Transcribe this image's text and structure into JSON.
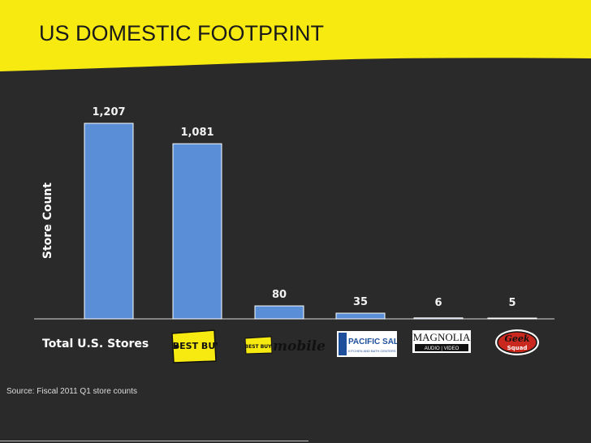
{
  "title": "US DOMESTIC FOOTPRINT",
  "colors": {
    "header": "#f7ea10",
    "background": "#2a2a2a",
    "bar": "#5a8fd8"
  },
  "chart_data": {
    "type": "bar",
    "ylabel": "Store Count",
    "category_axis_label": "Total U.S. Stores",
    "categories": [
      "Best Buy stores",
      "Best Buy Mobile",
      "Pacific Sales",
      "Magnolia Audio Video",
      "Geek Squad"
    ],
    "total": {
      "value": 1207,
      "label": "1,207"
    },
    "values": [
      1081,
      80,
      35,
      6,
      5
    ],
    "labels": [
      "1,081",
      "80",
      "35",
      "6",
      "5"
    ],
    "ylim": [
      0,
      1207
    ],
    "grid": false
  },
  "logos": {
    "bestbuy": "BEST BUY",
    "bbmobile_tag": "BEST BUY",
    "bbmobile": "mobile",
    "pacific": "PACIFIC SALES",
    "pacific_sub": "KITCHEN AND BATH CENTERS",
    "magnolia": "MAGNOLIA",
    "magnolia_sub": "AUDIO | VIDEO",
    "geek": "Geek",
    "squad": "Squad"
  },
  "source": "Source: Fiscal 2011 Q1 store counts"
}
